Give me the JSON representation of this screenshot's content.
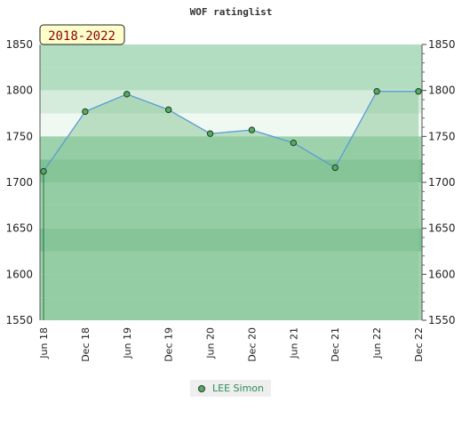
{
  "chart_data": {
    "type": "line",
    "title": "WOF ratinglist",
    "badge": "2018-2022",
    "x": [
      "Jun 18",
      "Dec 18",
      "Jun 19",
      "Dec 19",
      "Jun 20",
      "Dec 20",
      "Jun 21",
      "Dec 21",
      "Jun 22",
      "Dec 22"
    ],
    "series": [
      {
        "name": "LEE Simon",
        "values": [
          1712,
          1777,
          1796,
          1779,
          1753,
          1757,
          1743,
          1716,
          1799,
          1799
        ]
      }
    ],
    "ylim": [
      1550,
      1850
    ],
    "yticks": [
      1550,
      1600,
      1650,
      1700,
      1750,
      1800,
      1850
    ],
    "grid": true,
    "legend_position": "bottom-center",
    "colors": {
      "line": "#5b9bd5",
      "marker_fill": "#55aa66",
      "marker_stroke": "#1e3d1e",
      "area": "#8cc99b",
      "band_light": "#b2ddc0",
      "band_medium": "#9dd2ad",
      "band_dark": "#7cc292",
      "band_pale": "#d5ecdc",
      "band_white": "#f0f8f2",
      "badge_fill": "#ffffcc"
    }
  }
}
